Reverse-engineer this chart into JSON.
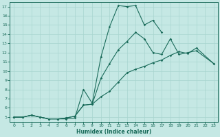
{
  "xlabel": "Humidex (Indice chaleur)",
  "xlim": [
    -0.5,
    23.5
  ],
  "ylim": [
    4.5,
    17.5
  ],
  "yticks": [
    5,
    6,
    7,
    8,
    9,
    10,
    11,
    12,
    13,
    14,
    15,
    16,
    17
  ],
  "xticks": [
    0,
    1,
    2,
    3,
    4,
    5,
    6,
    7,
    8,
    9,
    10,
    11,
    12,
    13,
    14,
    15,
    16,
    17,
    18,
    19,
    20,
    21,
    22,
    23
  ],
  "bg_color": "#c5e8e4",
  "line_color": "#1a6b5a",
  "grid_color": "#a8d5cf",
  "line1_x": [
    0,
    1,
    2,
    3,
    4,
    5,
    6,
    7,
    8,
    9,
    10,
    11,
    12,
    13,
    14,
    15,
    16,
    17
  ],
  "line1_y": [
    5,
    5,
    5.2,
    5,
    4.8,
    4.8,
    4.8,
    4.9,
    8.0,
    6.5,
    11.5,
    14.8,
    17.1,
    17.0,
    17.1,
    15.0,
    15.5,
    14.2
  ],
  "line2_x": [
    0,
    1,
    2,
    3,
    4,
    5,
    6,
    7,
    8,
    9,
    10,
    11,
    12,
    13,
    14,
    15,
    16,
    17,
    18,
    19,
    20,
    21,
    23
  ],
  "line2_y": [
    5,
    5,
    5.2,
    5,
    4.8,
    4.8,
    4.9,
    5.1,
    6.3,
    6.4,
    9.2,
    10.8,
    12.3,
    13.2,
    14.2,
    13.5,
    12.0,
    11.8,
    13.5,
    11.8,
    12.0,
    12.2,
    10.8
  ],
  "line3_x": [
    0,
    1,
    2,
    3,
    4,
    5,
    6,
    7,
    8,
    9,
    10,
    11,
    12,
    13,
    14,
    15,
    16,
    17,
    18,
    19,
    20,
    21,
    23
  ],
  "line3_y": [
    5,
    5,
    5.2,
    5,
    4.8,
    4.8,
    4.9,
    5.1,
    6.3,
    6.4,
    7.2,
    7.8,
    8.8,
    9.8,
    10.2,
    10.5,
    10.9,
    11.2,
    11.7,
    12.1,
    11.9,
    12.5,
    10.8
  ]
}
